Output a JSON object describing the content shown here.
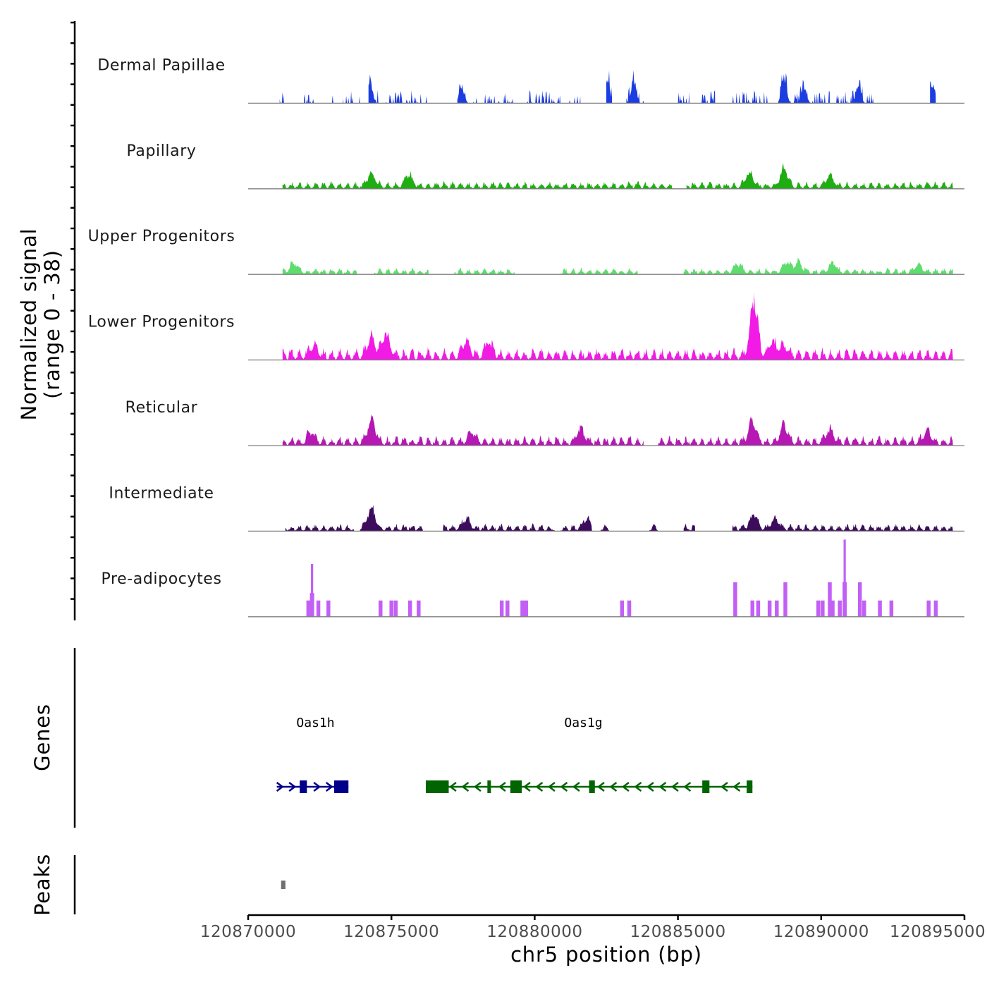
{
  "chart_data": {
    "type": "genome-coverage-tracks",
    "chromosome": "chr5",
    "xlabel": "chr5 position (bp)",
    "xlim": [
      120870000,
      120895000
    ],
    "xticks": [
      {
        "value": 120870000,
        "label": "120870000"
      },
      {
        "value": 120875000,
        "label": "120875000"
      },
      {
        "value": 120880000,
        "label": "120880000"
      },
      {
        "value": 120885000,
        "label": "120885000"
      },
      {
        "value": 120890000,
        "label": "120890000"
      },
      {
        "value": 120895000,
        "label": "120895000"
      }
    ],
    "coverage_ylabel_line1": "Normalized signal",
    "coverage_ylabel_line2": "(range 0 - 38)",
    "ylim": [
      0,
      38
    ],
    "genes_ylabel": "Genes",
    "peaks_ylabel": "Peaks",
    "tracks": [
      {
        "name": "Dermal Papillae",
        "color": "#1c3de0",
        "style": "spiky",
        "seed": 11,
        "segments": [
          [
            120871100,
            120871250
          ],
          [
            120871950,
            120872350
          ],
          [
            120872750,
            120873050
          ],
          [
            120873300,
            120873900
          ],
          [
            120874200,
            120876300
          ],
          [
            120877300,
            120878000
          ],
          [
            120878200,
            120879300
          ],
          [
            120879700,
            120880900
          ],
          [
            120881100,
            120881600
          ],
          [
            120882500,
            120882700
          ],
          [
            120883200,
            120883900
          ],
          [
            120885000,
            120885400
          ],
          [
            120885800,
            120886300
          ],
          [
            120886900,
            120888200
          ],
          [
            120888500,
            120890300
          ],
          [
            120890500,
            120891900
          ],
          [
            120893800,
            120894000
          ]
        ],
        "peaks": [
          [
            120874250,
            12
          ],
          [
            120877450,
            9
          ],
          [
            120882550,
            11
          ],
          [
            120883450,
            12
          ],
          [
            120888700,
            15
          ],
          [
            120889400,
            9
          ],
          [
            120891300,
            9
          ],
          [
            120893900,
            9
          ]
        ],
        "noise": 6
      },
      {
        "name": "Papillary",
        "color": "#20ad13",
        "style": "smooth",
        "seed": 23,
        "segments": [
          [
            120871200,
            120884800
          ],
          [
            120885300,
            120894600
          ]
        ],
        "peaks": [
          [
            120874300,
            7
          ],
          [
            120875600,
            6
          ],
          [
            120887500,
            7
          ],
          [
            120888700,
            9
          ],
          [
            120890300,
            6
          ]
        ],
        "noise": 3
      },
      {
        "name": "Upper Progenitors",
        "color": "#5edc6e",
        "style": "smooth",
        "seed": 37,
        "segments": [
          [
            120871200,
            120873800
          ],
          [
            120874400,
            120876300
          ],
          [
            120877200,
            120879300
          ],
          [
            120880900,
            120883600
          ],
          [
            120885200,
            120894600
          ]
        ],
        "peaks": [
          [
            120871600,
            5
          ],
          [
            120887100,
            4
          ],
          [
            120888800,
            5
          ],
          [
            120889200,
            5
          ],
          [
            120890400,
            5
          ],
          [
            120893400,
            4
          ]
        ],
        "noise": 2.5
      },
      {
        "name": "Lower Progenitors",
        "color": "#f21ae5",
        "style": "smooth",
        "seed": 41,
        "segments": [
          [
            120871200,
            120894600
          ]
        ],
        "peaks": [
          [
            120872300,
            6
          ],
          [
            120874300,
            11
          ],
          [
            120874800,
            12
          ],
          [
            120877600,
            8
          ],
          [
            120878400,
            7
          ],
          [
            120887650,
            31
          ],
          [
            120888300,
            8
          ],
          [
            120888700,
            6
          ]
        ],
        "noise": 5
      },
      {
        "name": "Reticular",
        "color": "#b618b4",
        "style": "smooth",
        "seed": 53,
        "segments": [
          [
            120871200,
            120883800
          ],
          [
            120884300,
            120894600
          ]
        ],
        "peaks": [
          [
            120872200,
            5
          ],
          [
            120874300,
            12
          ],
          [
            120877800,
            5
          ],
          [
            120881600,
            7
          ],
          [
            120887600,
            11
          ],
          [
            120888700,
            9
          ],
          [
            120890300,
            7
          ],
          [
            120893700,
            6
          ]
        ],
        "noise": 4
      },
      {
        "name": "Intermediate",
        "color": "#3e0c5c",
        "style": "smooth",
        "seed": 67,
        "segments": [
          [
            120871300,
            120873700
          ],
          [
            120873900,
            120876100
          ],
          [
            120876800,
            120880700
          ],
          [
            120880900,
            120882000
          ],
          [
            120882300,
            120882600
          ],
          [
            120884000,
            120884300
          ],
          [
            120885200,
            120885600
          ],
          [
            120886900,
            120894600
          ]
        ],
        "peaks": [
          [
            120874300,
            11
          ],
          [
            120877600,
            5
          ],
          [
            120881800,
            5
          ],
          [
            120887650,
            7
          ],
          [
            120888400,
            5
          ]
        ],
        "noise": 3
      },
      {
        "name": "Pre-adipocytes",
        "color": "#c260f5",
        "style": "bars",
        "seed": 79,
        "segments": [],
        "bars": [
          [
            120872100,
            8
          ],
          [
            120872230,
            26
          ],
          [
            120872450,
            8
          ],
          [
            120872800,
            8
          ],
          [
            120874620,
            8
          ],
          [
            120875000,
            8
          ],
          [
            120875150,
            8
          ],
          [
            120875650,
            8
          ],
          [
            120875950,
            8
          ],
          [
            120878850,
            8
          ],
          [
            120879050,
            8
          ],
          [
            120879570,
            8
          ],
          [
            120879700,
            8
          ],
          [
            120883050,
            8
          ],
          [
            120883300,
            8
          ],
          [
            120887000,
            17
          ],
          [
            120887600,
            8
          ],
          [
            120887800,
            8
          ],
          [
            120888200,
            8
          ],
          [
            120888450,
            8
          ],
          [
            120888750,
            17
          ],
          [
            120889900,
            8
          ],
          [
            120890050,
            8
          ],
          [
            120890300,
            17
          ],
          [
            120890400,
            8
          ],
          [
            120890650,
            8
          ],
          [
            120890820,
            38
          ],
          [
            120891350,
            17
          ],
          [
            120891500,
            8
          ],
          [
            120892050,
            8
          ],
          [
            120892450,
            8
          ],
          [
            120893750,
            8
          ],
          [
            120894000,
            8
          ]
        ],
        "peaks": [],
        "noise": 0
      }
    ],
    "genes": [
      {
        "name": "Oas1h",
        "strand": "+",
        "color": "#00008b",
        "start": 120871000,
        "end": 120873500,
        "exons": [
          [
            120871800,
            120872050
          ],
          [
            120873000,
            120873500
          ]
        ],
        "label_pos": 120872350
      },
      {
        "name": "Oas1g",
        "strand": "-",
        "color": "#006400",
        "start": 120876200,
        "end": 120887600,
        "exons": [
          [
            120876200,
            120877000
          ],
          [
            120878350,
            120878450
          ],
          [
            120879150,
            120879550
          ],
          [
            120881900,
            120882100
          ],
          [
            120885850,
            120886100
          ],
          [
            120887400,
            120887600
          ]
        ],
        "label_pos": 120881700
      }
    ],
    "peaks": [
      [
        120871150,
        120871300
      ]
    ]
  }
}
